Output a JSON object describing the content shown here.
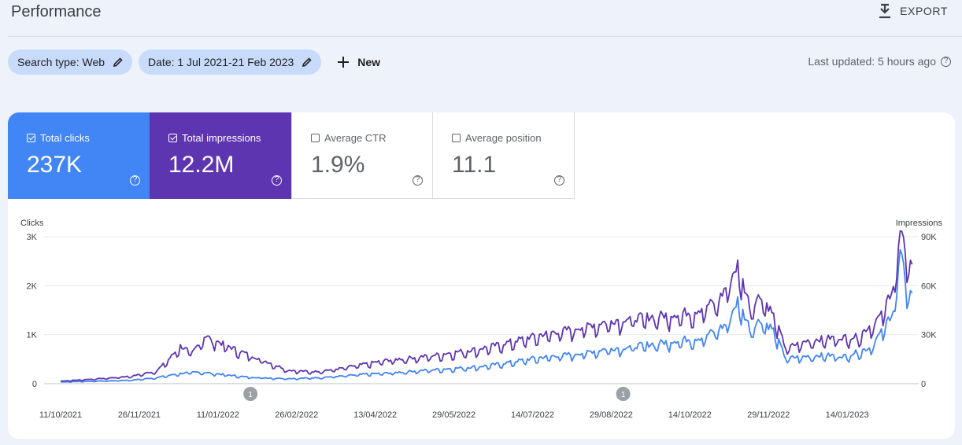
{
  "header": {
    "title": "Performance",
    "export_label": "EXPORT"
  },
  "filters": {
    "search_type": "Search type: Web",
    "date": "Date: 1 Jul 2021-21 Feb 2023",
    "new_label": "New",
    "last_updated": "Last updated: 5 hours ago"
  },
  "metrics": [
    {
      "label": "Total clicks",
      "value": "237K",
      "checked": true,
      "color": "#4285f4"
    },
    {
      "label": "Total impressions",
      "value": "12.2M",
      "checked": true,
      "color": "#5e35b1"
    },
    {
      "label": "Average CTR",
      "value": "1.9%",
      "checked": false
    },
    {
      "label": "Average position",
      "value": "11.1",
      "checked": false
    }
  ],
  "chart_data": {
    "type": "line",
    "left_axis_label": "Clicks",
    "right_axis_label": "Impressions",
    "left_ticks": [
      "3K",
      "2K",
      "1K",
      "0"
    ],
    "right_ticks": [
      "90K",
      "60K",
      "30K",
      "0"
    ],
    "left_ylim": [
      0,
      3000
    ],
    "right_ylim": [
      0,
      90000
    ],
    "x_ticks": [
      "11/10/2021",
      "26/11/2021",
      "11/01/2022",
      "26/02/2022",
      "13/04/2022",
      "29/05/2022",
      "14/07/2022",
      "29/08/2022",
      "14/10/2022",
      "29/11/2022",
      "14/01/2023"
    ],
    "annotations": [
      {
        "date": "2022-01-30",
        "label": "1"
      },
      {
        "date": "2022-09-05",
        "label": "1"
      }
    ],
    "grid": true,
    "series": [
      {
        "name": "Total clicks",
        "axis": "left",
        "color": "#4285f4",
        "points": [
          [
            "2021-10-11",
            35
          ],
          [
            "2021-10-25",
            45
          ],
          [
            "2021-11-08",
            55
          ],
          [
            "2021-11-22",
            70
          ],
          [
            "2021-12-06",
            120
          ],
          [
            "2021-12-20",
            200
          ],
          [
            "2021-12-31",
            230
          ],
          [
            "2022-01-14",
            180
          ],
          [
            "2022-01-28",
            130
          ],
          [
            "2022-02-11",
            110
          ],
          [
            "2022-02-25",
            100
          ],
          [
            "2022-03-11",
            120
          ],
          [
            "2022-03-25",
            150
          ],
          [
            "2022-04-08",
            190
          ],
          [
            "2022-04-22",
            210
          ],
          [
            "2022-05-06",
            250
          ],
          [
            "2022-05-20",
            280
          ],
          [
            "2022-06-03",
            310
          ],
          [
            "2022-06-17",
            350
          ],
          [
            "2022-07-01",
            420
          ],
          [
            "2022-07-15",
            500
          ],
          [
            "2022-07-29",
            550
          ],
          [
            "2022-08-12",
            600
          ],
          [
            "2022-08-26",
            680
          ],
          [
            "2022-09-09",
            720
          ],
          [
            "2022-09-23",
            780
          ],
          [
            "2022-10-07",
            850
          ],
          [
            "2022-10-21",
            900
          ],
          [
            "2022-11-04",
            1150
          ],
          [
            "2022-11-11",
            1620
          ],
          [
            "2022-11-18",
            1100
          ],
          [
            "2022-11-25",
            1250
          ],
          [
            "2022-12-02",
            1050
          ],
          [
            "2022-12-09",
            500
          ],
          [
            "2022-12-16",
            520
          ],
          [
            "2022-12-30",
            560
          ],
          [
            "2023-01-13",
            540
          ],
          [
            "2023-01-27",
            700
          ],
          [
            "2023-02-03",
            1000
          ],
          [
            "2023-02-10",
            1450
          ],
          [
            "2023-02-14",
            2500
          ],
          [
            "2023-02-18",
            1900
          ],
          [
            "2023-02-21",
            1850
          ]
        ]
      },
      {
        "name": "Total impressions",
        "axis": "right",
        "color": "#5e35b1",
        "points": [
          [
            "2021-10-11",
            1500
          ],
          [
            "2021-10-25",
            2400
          ],
          [
            "2021-11-08",
            3300
          ],
          [
            "2021-11-22",
            4500
          ],
          [
            "2021-12-06",
            7500
          ],
          [
            "2021-12-13",
            14000
          ],
          [
            "2021-12-20",
            22000
          ],
          [
            "2021-12-27",
            18000
          ],
          [
            "2022-01-03",
            28000
          ],
          [
            "2022-01-10",
            25000
          ],
          [
            "2022-01-24",
            19000
          ],
          [
            "2022-02-07",
            13500
          ],
          [
            "2022-02-21",
            8000
          ],
          [
            "2022-03-07",
            7000
          ],
          [
            "2022-03-21",
            8500
          ],
          [
            "2022-04-04",
            11000
          ],
          [
            "2022-04-18",
            13500
          ],
          [
            "2022-05-02",
            15000
          ],
          [
            "2022-05-16",
            16500
          ],
          [
            "2022-05-30",
            18500
          ],
          [
            "2022-06-13",
            20500
          ],
          [
            "2022-06-27",
            23500
          ],
          [
            "2022-07-11",
            27000
          ],
          [
            "2022-07-25",
            30000
          ],
          [
            "2022-08-08",
            32500
          ],
          [
            "2022-08-22",
            35500
          ],
          [
            "2022-09-05",
            38000
          ],
          [
            "2022-09-19",
            39000
          ],
          [
            "2022-10-03",
            40500
          ],
          [
            "2022-10-17",
            42500
          ],
          [
            "2022-10-31",
            49000
          ],
          [
            "2022-11-11",
            69500
          ],
          [
            "2022-11-18",
            46000
          ],
          [
            "2022-11-25",
            52000
          ],
          [
            "2022-12-02",
            40000
          ],
          [
            "2022-12-09",
            21000
          ],
          [
            "2022-12-23",
            25500
          ],
          [
            "2023-01-06",
            27000
          ],
          [
            "2023-01-20",
            27500
          ],
          [
            "2023-02-03",
            40000
          ],
          [
            "2023-02-10",
            58000
          ],
          [
            "2023-02-14",
            86000
          ],
          [
            "2023-02-18",
            76000
          ],
          [
            "2023-02-21",
            73000
          ]
        ]
      }
    ]
  }
}
